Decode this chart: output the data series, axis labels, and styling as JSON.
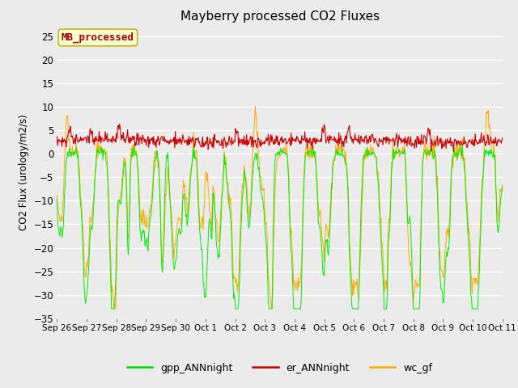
{
  "title": "Mayberry processed CO2 Fluxes",
  "ylabel": "CO2 Flux (urology/m2/s)",
  "ylim": [
    -35,
    27
  ],
  "yticks": [
    -35,
    -30,
    -25,
    -20,
    -15,
    -10,
    -5,
    0,
    5,
    10,
    15,
    20,
    25
  ],
  "xlabel_dates": [
    "Sep 26",
    "Sep 27",
    "Sep 28",
    "Sep 29",
    "Sep 30",
    "Oct 1",
    "Oct 2",
    "Oct 3",
    "Oct 4",
    "Oct 5",
    "Oct 6",
    "Oct 7",
    "Oct 8",
    "Oct 9",
    "Oct 10",
    "Oct 11"
  ],
  "legend_labels": [
    "gpp_ANNnight",
    "er_ANNnight",
    "wc_gf"
  ],
  "legend_colors": [
    "#00dd00",
    "#cc0000",
    "#ffaa00"
  ],
  "annotation_text": "MB_processed",
  "annotation_color": "#aa0000",
  "annotation_bg": "#ffffcc",
  "bg_color": "#ebebeb",
  "grid_color": "#ffffff",
  "n_points": 720,
  "seed": 42
}
